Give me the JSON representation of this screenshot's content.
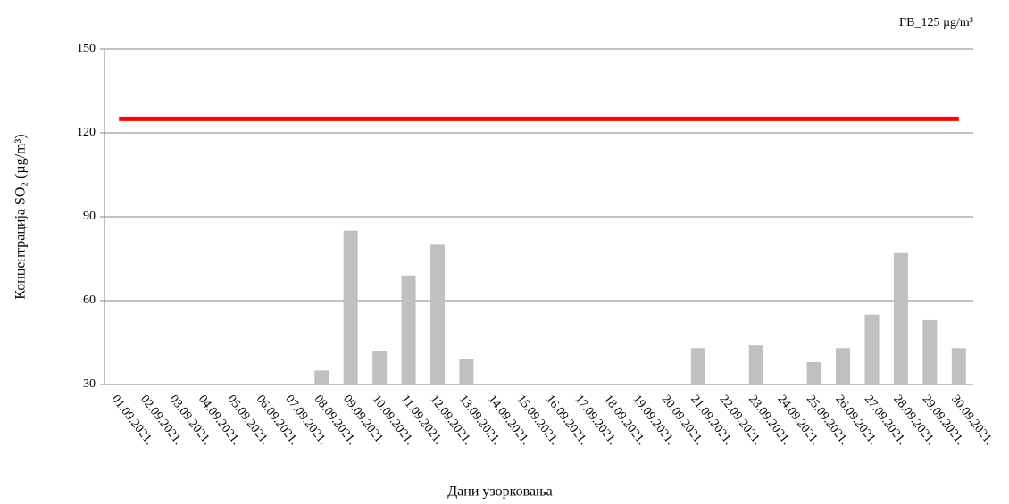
{
  "chart_data": {
    "type": "bar",
    "y_label": "Концентрација  SO₂ (µg/m³)",
    "x_label": "Дани узорковања",
    "categories": [
      "01.09.2021.",
      "02.09.2021.",
      "03.09.2021.",
      "04.09.2021.",
      "05.09.2021.",
      "06.09.2021.",
      "07.09.2021.",
      "08.09.2021.",
      "09.09.2021.",
      "10.09.2021.",
      "11.09.2021.",
      "12.09.2021.",
      "13.09.2021.",
      "14.09.2021.",
      "15.09.2021.",
      "16.09.2021.",
      "17.09.2021.",
      "18.09.2021.",
      "19.09.2021.",
      "20.09.2021.",
      "21.09.2021.",
      "22.09.2021.",
      "23.09.2021.",
      "24.09.2021.",
      "25.09.2021.",
      "26.09.2021.",
      "27.09.2021.",
      "28.09.2021.",
      "29.09.2021.",
      "30.09.2021."
    ],
    "values": [
      null,
      null,
      null,
      null,
      null,
      null,
      null,
      35,
      85,
      42,
      69,
      80,
      39,
      null,
      null,
      null,
      null,
      null,
      null,
      null,
      43,
      null,
      44,
      null,
      38,
      43,
      55,
      77,
      53,
      43
    ],
    "color": "#c0c0c0",
    "limit": {
      "label": "ГВ_125 µg/m³",
      "value": 125,
      "color": "#ff0000"
    },
    "ylim": [
      30,
      150
    ],
    "yticks": [
      30,
      60,
      90,
      120,
      150
    ],
    "grid": true
  }
}
